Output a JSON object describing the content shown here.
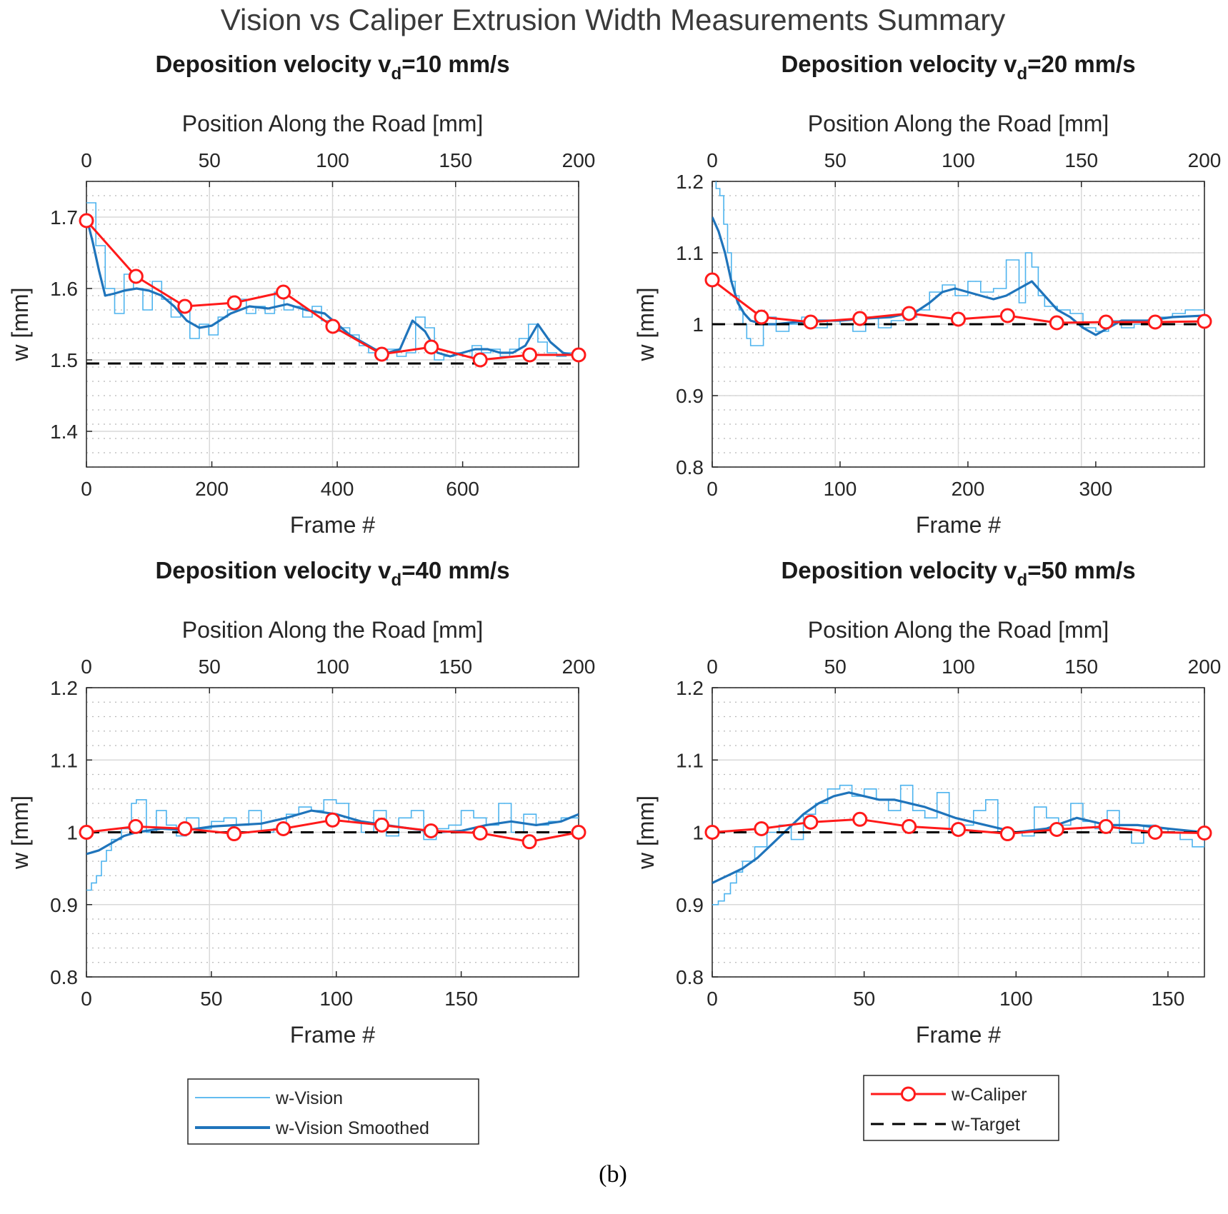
{
  "figure_title": "Vision vs Caliper Extrusion Width Measurements Summary",
  "caption": "(b)",
  "colors": {
    "vision": "#4db3ee",
    "smoothed": "#1f74bb",
    "caliper": "#ff1a1a",
    "target": "#000000",
    "grid": "#d9d9d9"
  },
  "legends": [
    {
      "entries": [
        {
          "label": "w-Vision",
          "style": "vision"
        },
        {
          "label": "w-Vision Smoothed",
          "style": "smoothed"
        }
      ]
    },
    {
      "entries": [
        {
          "label": "w-Caliper",
          "style": "caliper"
        },
        {
          "label": "w-Target",
          "style": "target"
        }
      ]
    }
  ],
  "chart_data": [
    {
      "type": "line",
      "title_prefix": "Deposition velocity v",
      "title_subscript": "d",
      "title_suffix": "=10 mm/s",
      "xlabel": "Frame #",
      "x2label": "Position Along the Road [mm]",
      "ylabel": "w [mm]",
      "xlim": [
        0,
        785
      ],
      "x2lim": [
        0,
        200
      ],
      "ylim": [
        1.35,
        1.75
      ],
      "xticks": [
        0,
        200,
        400,
        600
      ],
      "x2ticks": [
        0,
        50,
        100,
        150,
        200
      ],
      "yticks": [
        1.4,
        1.5,
        1.6,
        1.7
      ],
      "target": 1.495,
      "caliper": {
        "x": [
          0,
          79,
          157,
          236,
          314,
          393,
          471,
          550,
          628,
          707,
          785
        ],
        "y": [
          1.695,
          1.617,
          1.575,
          1.58,
          1.595,
          1.547,
          1.508,
          1.518,
          1.5,
          1.507,
          1.507
        ]
      },
      "smoothed": {
        "x": [
          0,
          10,
          20,
          30,
          45,
          60,
          80,
          100,
          120,
          140,
          160,
          180,
          200,
          230,
          260,
          290,
          320,
          350,
          380,
          400,
          420,
          440,
          460,
          480,
          500,
          520,
          540,
          560,
          580,
          600,
          620,
          640,
          660,
          680,
          700,
          720,
          740,
          760,
          785
        ],
        "y": [
          1.7,
          1.665,
          1.625,
          1.59,
          1.593,
          1.597,
          1.6,
          1.597,
          1.59,
          1.575,
          1.555,
          1.545,
          1.548,
          1.565,
          1.575,
          1.572,
          1.578,
          1.57,
          1.565,
          1.55,
          1.535,
          1.525,
          1.515,
          1.51,
          1.515,
          1.555,
          1.54,
          1.51,
          1.505,
          1.51,
          1.515,
          1.515,
          1.51,
          1.51,
          1.52,
          1.55,
          1.525,
          1.51,
          1.505
        ]
      },
      "vision": {
        "x": [
          0,
          15,
          30,
          45,
          60,
          75,
          90,
          105,
          120,
          135,
          150,
          165,
          180,
          195,
          210,
          225,
          240,
          255,
          270,
          285,
          300,
          315,
          330,
          345,
          360,
          375,
          390,
          405,
          420,
          435,
          450,
          465,
          480,
          495,
          510,
          525,
          540,
          555,
          570,
          585,
          600,
          615,
          630,
          645,
          660,
          675,
          690,
          705,
          720,
          735,
          750,
          765,
          785
        ],
        "y": [
          1.72,
          1.66,
          1.6,
          1.565,
          1.62,
          1.6,
          1.57,
          1.61,
          1.585,
          1.56,
          1.57,
          1.53,
          1.55,
          1.535,
          1.56,
          1.57,
          1.585,
          1.565,
          1.575,
          1.565,
          1.595,
          1.57,
          1.575,
          1.56,
          1.575,
          1.555,
          1.54,
          1.545,
          1.535,
          1.52,
          1.51,
          1.5,
          1.515,
          1.505,
          1.51,
          1.56,
          1.545,
          1.5,
          1.505,
          1.51,
          1.505,
          1.52,
          1.51,
          1.515,
          1.505,
          1.515,
          1.53,
          1.55,
          1.525,
          1.51,
          1.505,
          1.51,
          1.5
        ]
      }
    },
    {
      "type": "line",
      "title_prefix": "Deposition velocity v",
      "title_subscript": "d",
      "title_suffix": "=20 mm/s",
      "xlabel": "Frame #",
      "x2label": "Position Along the Road [mm]",
      "ylabel": "w [mm]",
      "xlim": [
        0,
        385
      ],
      "x2lim": [
        0,
        200
      ],
      "ylim": [
        0.8,
        1.2
      ],
      "xticks": [
        0,
        100,
        200,
        300
      ],
      "x2ticks": [
        0,
        50,
        100,
        150,
        200
      ],
      "yticks": [
        0.8,
        0.9,
        1,
        1.1,
        1.2
      ],
      "target": 1.0,
      "caliper": {
        "x": [
          0,
          38.5,
          77,
          115.5,
          154,
          192.5,
          231,
          269.5,
          308,
          346.5,
          385
        ],
        "y": [
          1.062,
          1.01,
          1.003,
          1.008,
          1.015,
          1.007,
          1.012,
          1.002,
          1.003,
          1.003,
          1.004
        ]
      },
      "smoothed": {
        "x": [
          0,
          5,
          10,
          15,
          20,
          25,
          30,
          40,
          50,
          60,
          80,
          100,
          120,
          140,
          160,
          170,
          180,
          190,
          200,
          210,
          220,
          230,
          240,
          250,
          260,
          270,
          280,
          290,
          300,
          320,
          340,
          360,
          385
        ],
        "y": [
          1.15,
          1.13,
          1.1,
          1.06,
          1.03,
          1.015,
          1.005,
          1.0,
          1.0,
          1.002,
          1.005,
          1.005,
          1.008,
          1.01,
          1.018,
          1.03,
          1.045,
          1.05,
          1.045,
          1.04,
          1.035,
          1.04,
          1.05,
          1.06,
          1.04,
          1.02,
          1.01,
          0.995,
          0.985,
          1.005,
          1.005,
          1.01,
          1.012
        ]
      },
      "vision": {
        "x": [
          0,
          3,
          6,
          9,
          12,
          15,
          18,
          21,
          24,
          27,
          30,
          40,
          50,
          60,
          70,
          80,
          90,
          100,
          110,
          120,
          130,
          140,
          150,
          160,
          170,
          180,
          190,
          200,
          210,
          220,
          230,
          240,
          245,
          250,
          255,
          260,
          270,
          280,
          290,
          300,
          310,
          320,
          330,
          340,
          350,
          360,
          370,
          385
        ],
        "y": [
          1.21,
          1.19,
          1.18,
          1.14,
          1.1,
          1.06,
          1.04,
          1.02,
          1.0,
          0.98,
          0.97,
          1.01,
          0.99,
          1.0,
          1.01,
          0.995,
          1.005,
          1.0,
          0.99,
          1.01,
          0.995,
          1.005,
          1.01,
          1.02,
          1.045,
          1.055,
          1.04,
          1.06,
          1.045,
          1.05,
          1.09,
          1.03,
          1.1,
          1.08,
          1.04,
          1.025,
          1.02,
          1.015,
          0.995,
          0.99,
          1.005,
          0.995,
          1.0,
          1.005,
          1.01,
          1.015,
          1.02,
          1.015
        ]
      }
    },
    {
      "type": "line",
      "title_prefix": "Deposition velocity v",
      "title_subscript": "d",
      "title_suffix": "=40 mm/s",
      "xlabel": "Frame #",
      "x2label": "Position Along the Road [mm]",
      "ylabel": "w [mm]",
      "xlim": [
        0,
        197
      ],
      "x2lim": [
        0,
        200
      ],
      "ylim": [
        0.8,
        1.2
      ],
      "xticks": [
        0,
        50,
        100,
        150
      ],
      "x2ticks": [
        0,
        50,
        100,
        150,
        200
      ],
      "yticks": [
        0.8,
        0.9,
        1,
        1.1,
        1.2
      ],
      "target": 1.0,
      "caliper": {
        "x": [
          0,
          19.7,
          39.4,
          59.1,
          78.8,
          98.5,
          118.2,
          137.9,
          157.6,
          177.3,
          197
        ],
        "y": [
          1.0,
          1.008,
          1.005,
          0.998,
          1.005,
          1.017,
          1.01,
          1.002,
          0.999,
          0.987,
          1.0
        ]
      },
      "smoothed": {
        "x": [
          0,
          5,
          10,
          15,
          20,
          30,
          40,
          50,
          60,
          70,
          80,
          90,
          100,
          110,
          120,
          130,
          140,
          150,
          160,
          170,
          180,
          190,
          197
        ],
        "y": [
          0.97,
          0.975,
          0.985,
          0.995,
          1.0,
          1.005,
          1.003,
          1.008,
          1.01,
          1.012,
          1.02,
          1.03,
          1.025,
          1.015,
          1.01,
          1.005,
          1.0,
          1.002,
          1.01,
          1.015,
          1.01,
          1.015,
          1.025
        ]
      },
      "vision": {
        "x": [
          0,
          2,
          4,
          6,
          8,
          10,
          14,
          18,
          20,
          24,
          28,
          32,
          36,
          40,
          45,
          50,
          55,
          60,
          65,
          70,
          75,
          80,
          85,
          90,
          95,
          100,
          105,
          110,
          115,
          120,
          125,
          130,
          135,
          140,
          145,
          150,
          155,
          160,
          165,
          170,
          175,
          180,
          185,
          190,
          197
        ],
        "y": [
          0.92,
          0.93,
          0.94,
          0.96,
          0.975,
          0.99,
          1.005,
          1.04,
          1.045,
          1.0,
          1.03,
          1.01,
          0.995,
          1.02,
          1.005,
          1.015,
          1.02,
          1.01,
          1.03,
          1.0,
          1.005,
          1.025,
          1.035,
          1.03,
          1.045,
          1.04,
          1.015,
          1.0,
          1.03,
          0.995,
          1.02,
          1.03,
          0.99,
          1.005,
          1.01,
          1.03,
          1.02,
          1.01,
          1.04,
          1.0,
          1.025,
          1.01,
          1.015,
          1.02,
          1.02
        ]
      }
    },
    {
      "type": "line",
      "title_prefix": "Deposition velocity v",
      "title_subscript": "d",
      "title_suffix": "=50 mm/s",
      "xlabel": "Frame #",
      "x2label": "Position Along the Road [mm]",
      "ylabel": "w [mm]",
      "xlim": [
        0,
        162
      ],
      "x2lim": [
        0,
        200
      ],
      "ylim": [
        0.8,
        1.2
      ],
      "xticks": [
        0,
        50,
        100,
        150
      ],
      "x2ticks": [
        0,
        50,
        100,
        150,
        200
      ],
      "yticks": [
        0.8,
        0.9,
        1,
        1.1,
        1.2
      ],
      "target": 1.0,
      "caliper": {
        "x": [
          0,
          16.2,
          32.4,
          48.6,
          64.8,
          81,
          97.2,
          113.4,
          129.6,
          145.8,
          162
        ],
        "y": [
          1.0,
          1.005,
          1.014,
          1.018,
          1.008,
          1.004,
          0.998,
          1.004,
          1.008,
          1.0,
          0.999
        ]
      },
      "smoothed": {
        "x": [
          0,
          5,
          10,
          15,
          20,
          25,
          30,
          35,
          40,
          45,
          50,
          55,
          60,
          70,
          80,
          90,
          100,
          110,
          120,
          130,
          140,
          150,
          162
        ],
        "y": [
          0.93,
          0.94,
          0.95,
          0.965,
          0.985,
          1.005,
          1.025,
          1.04,
          1.05,
          1.055,
          1.05,
          1.045,
          1.045,
          1.035,
          1.02,
          1.01,
          1.0,
          1.005,
          1.02,
          1.01,
          1.01,
          1.005,
          1.0
        ]
      },
      "vision": {
        "x": [
          0,
          2,
          4,
          6,
          8,
          10,
          14,
          18,
          22,
          26,
          30,
          34,
          38,
          42,
          46,
          50,
          54,
          58,
          62,
          66,
          70,
          74,
          78,
          82,
          86,
          90,
          94,
          98,
          102,
          106,
          110,
          114,
          118,
          122,
          126,
          130,
          134,
          138,
          142,
          146,
          150,
          154,
          158,
          162
        ],
        "y": [
          0.9,
          0.905,
          0.915,
          0.93,
          0.945,
          0.96,
          0.98,
          1.0,
          1.01,
          0.99,
          1.025,
          1.04,
          1.06,
          1.065,
          1.05,
          1.06,
          1.045,
          1.03,
          1.065,
          1.03,
          1.02,
          1.055,
          1.0,
          1.01,
          1.03,
          1.045,
          1.0,
          1.0,
          0.995,
          1.035,
          1.02,
          1.01,
          1.04,
          1.015,
          1.005,
          1.03,
          1.0,
          0.985,
          1.01,
          1.005,
          1.0,
          0.99,
          0.98,
          1.0
        ]
      }
    }
  ]
}
